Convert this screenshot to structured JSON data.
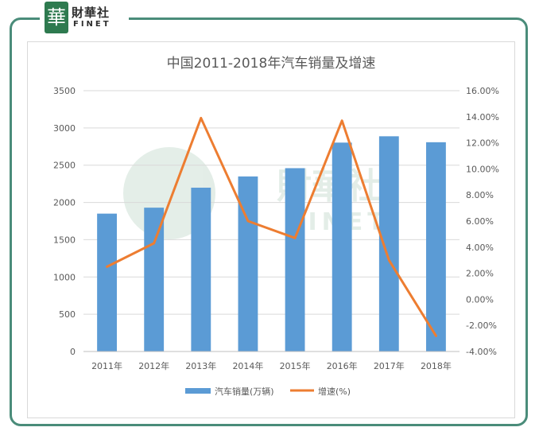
{
  "logo": {
    "seal_char": "華",
    "cn": "財華社",
    "en": "FINET"
  },
  "watermark": {
    "cn": "財華社",
    "en": "FINET"
  },
  "chart_data": {
    "type": "bar",
    "title": "中国2011-2018年汽车销量及增速",
    "categories": [
      "2011年",
      "2012年",
      "2013年",
      "2014年",
      "2015年",
      "2016年",
      "2017年",
      "2018年"
    ],
    "series": [
      {
        "name": "汽车销量(万辆)",
        "type": "bar",
        "axis": "left",
        "color": "#5b9bd5",
        "values": [
          1850,
          1930,
          2198,
          2349,
          2460,
          2803,
          2888,
          2808
        ]
      },
      {
        "name": "增速(%)",
        "type": "line",
        "axis": "right",
        "color": "#ed7d31",
        "values": [
          2.5,
          4.3,
          13.9,
          6.0,
          4.7,
          13.7,
          3.0,
          -2.8
        ]
      }
    ],
    "y_left": {
      "min": 0,
      "max": 3500,
      "ticks": [
        "0",
        "500",
        "1000",
        "1500",
        "2000",
        "2500",
        "3000",
        "3500"
      ]
    },
    "y_right": {
      "min": -4,
      "max": 16,
      "ticks": [
        "-4.00%",
        "-2.00%",
        "0.00%",
        "2.00%",
        "4.00%",
        "6.00%",
        "8.00%",
        "10.00%",
        "12.00%",
        "14.00%",
        "16.00%"
      ]
    },
    "grid": true,
    "legend_position": "bottom"
  }
}
